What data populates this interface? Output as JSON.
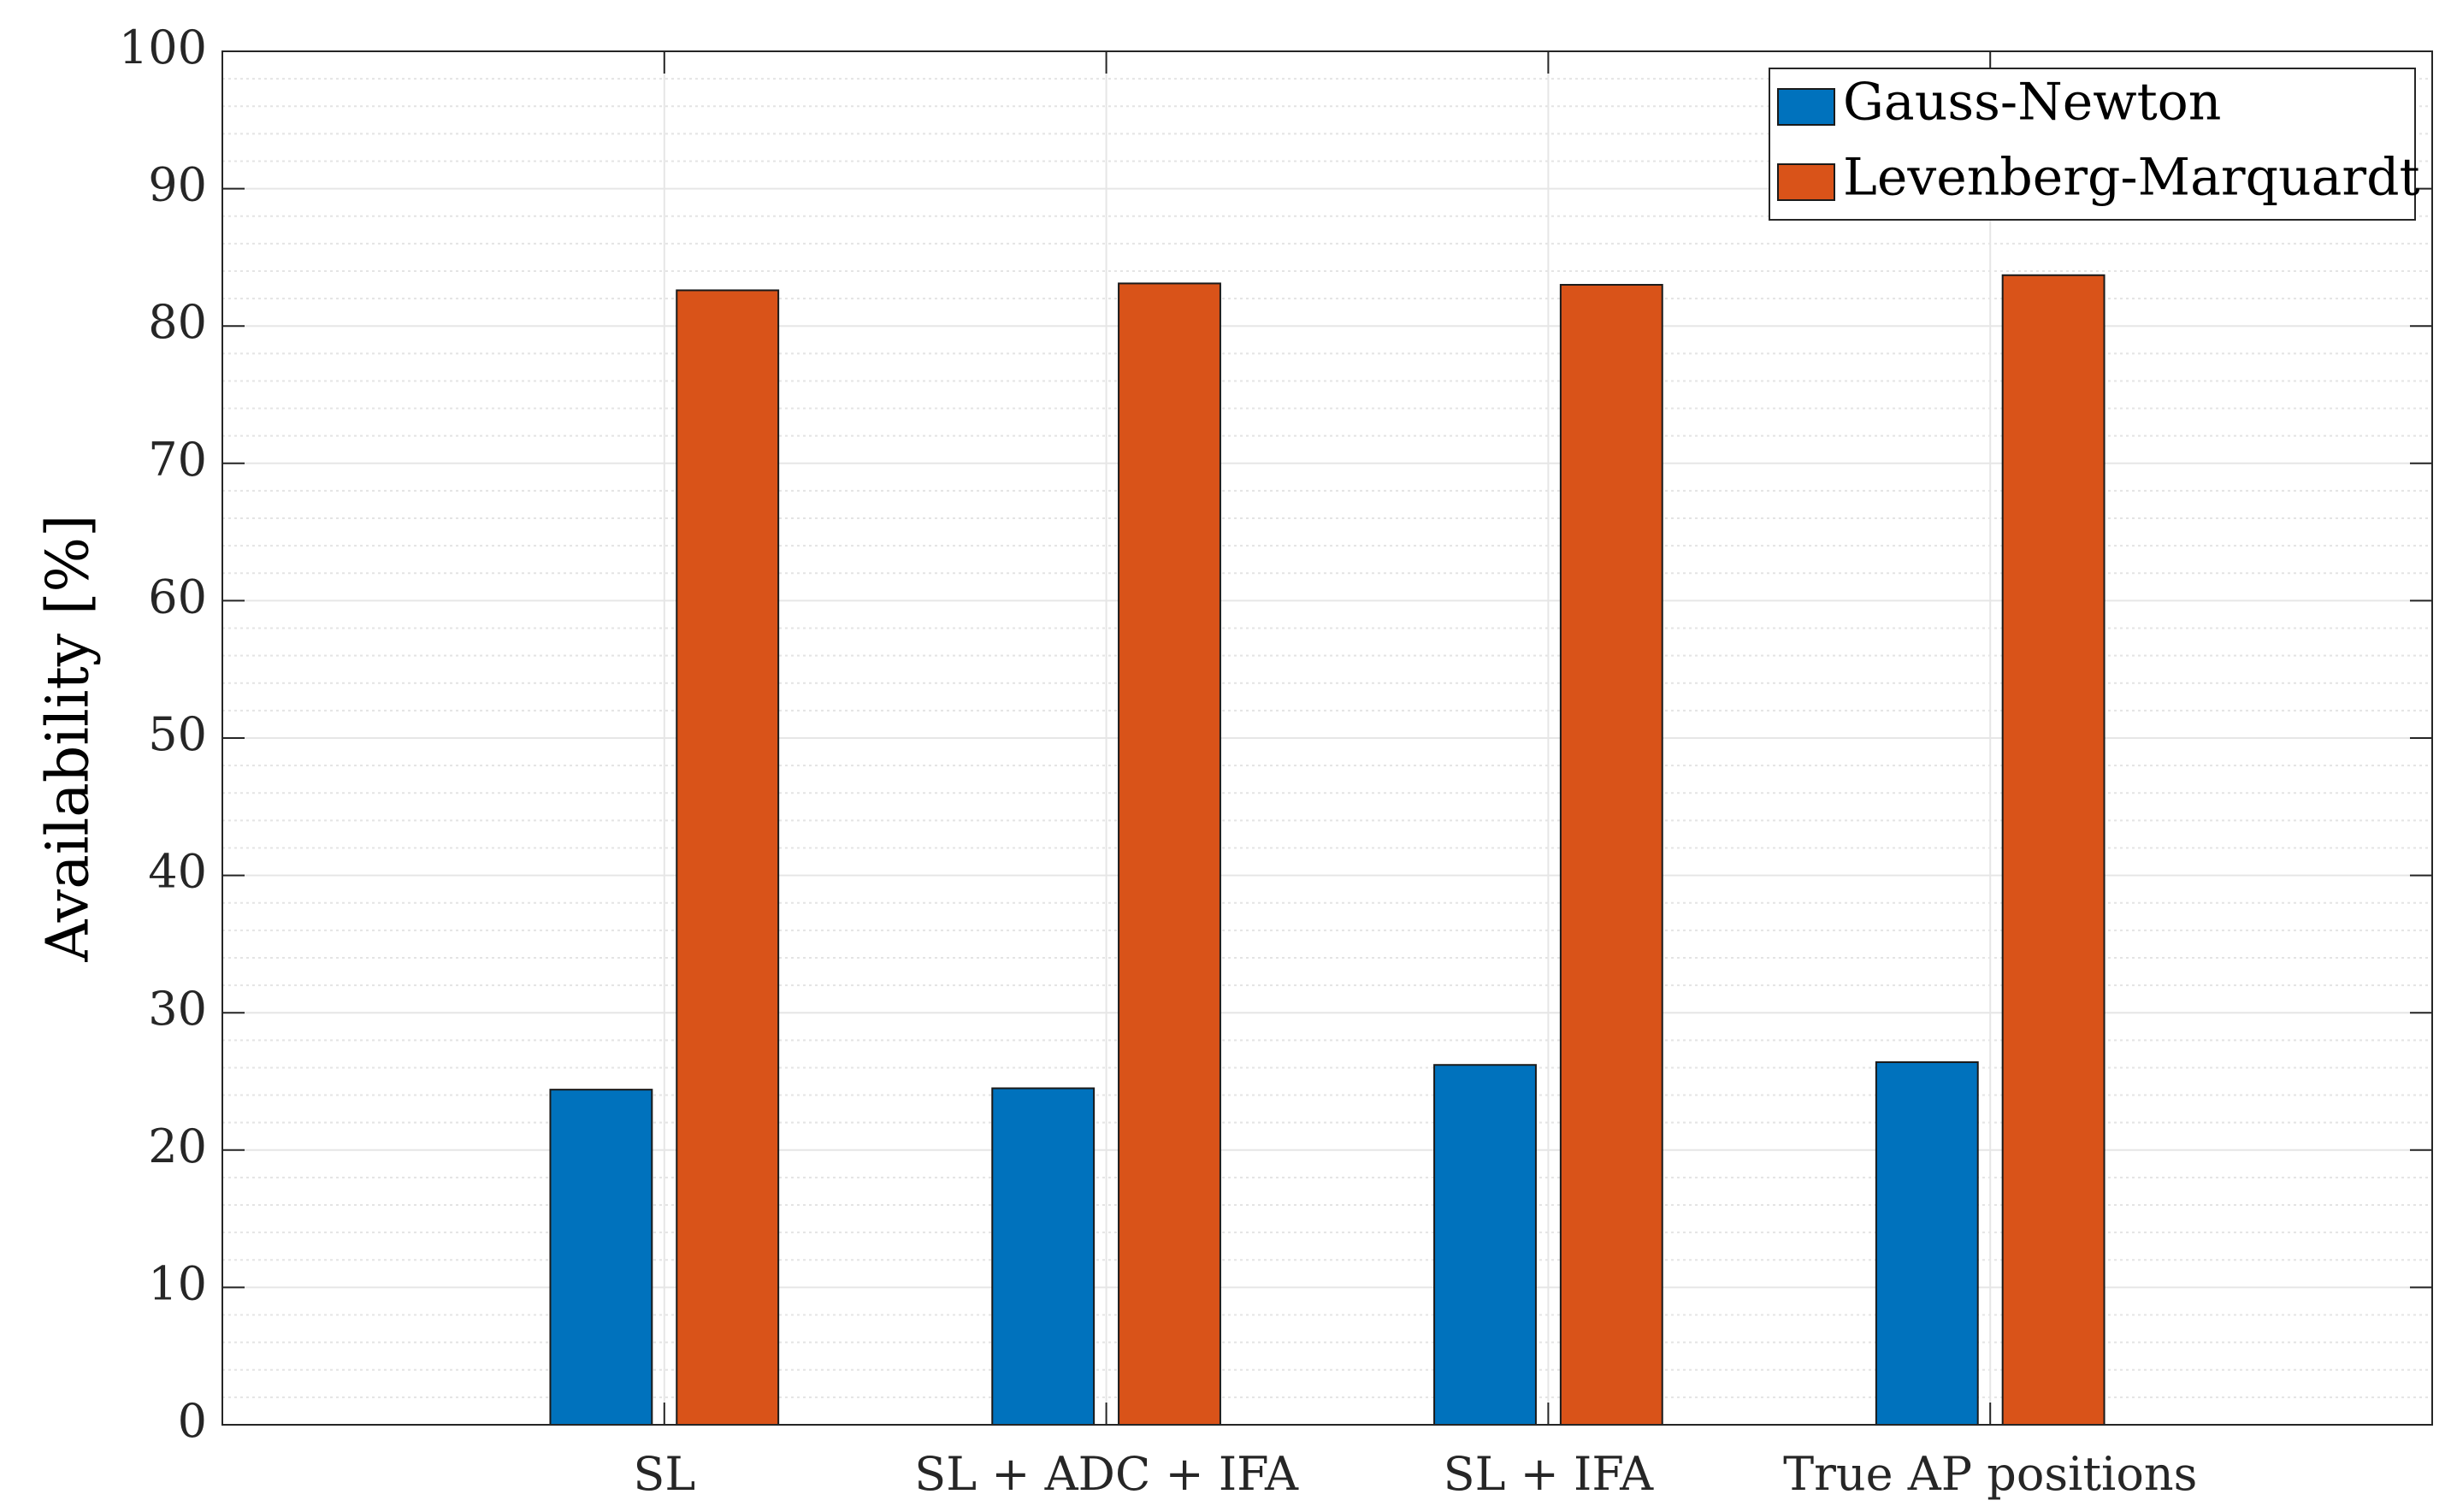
{
  "chart_data": {
    "type": "bar",
    "title": "",
    "xlabel": "",
    "ylabel": "Availability [%]",
    "ylim": [
      0,
      100
    ],
    "yticks": [
      0,
      10,
      20,
      30,
      40,
      50,
      60,
      70,
      80,
      90,
      100
    ],
    "ytick_labels": [
      "0",
      "10",
      "20",
      "30",
      "40",
      "50",
      "60",
      "70",
      "80",
      "90",
      "100"
    ],
    "grid": true,
    "minor_grid": true,
    "legend_position": "top-right",
    "categories": [
      "SL",
      "SL + ADC + IFA",
      "SL + IFA",
      "True AP positions"
    ],
    "series": [
      {
        "name": "Gauss-Newton",
        "color": "#0072BD",
        "values": [
          24.4,
          24.5,
          26.2,
          26.4
        ]
      },
      {
        "name": "Levenberg-Marquardt",
        "color": "#D95319",
        "values": [
          82.6,
          83.1,
          83.0,
          83.7
        ]
      }
    ]
  }
}
